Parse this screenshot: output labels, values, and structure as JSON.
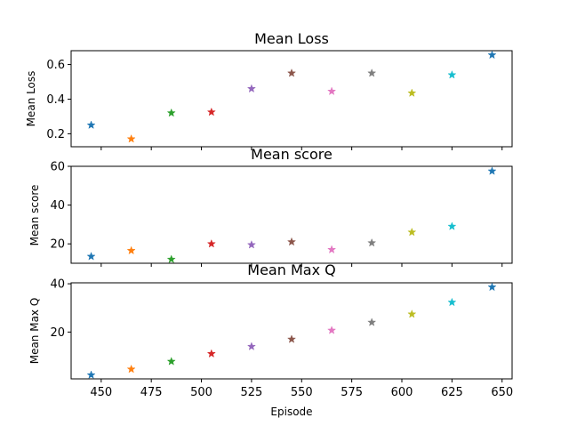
{
  "colors": [
    "#1f77b4",
    "#ff7f0e",
    "#2ca02c",
    "#d62728",
    "#9467bd",
    "#8c564b",
    "#e377c2",
    "#7f7f7f",
    "#bcbd22",
    "#17becf",
    "#1f77b4"
  ],
  "chart_data": [
    {
      "type": "scatter",
      "title": "Mean Loss",
      "ylabel": "Mean Loss",
      "xlabel": "",
      "x": [
        445,
        465,
        485,
        505,
        525,
        545,
        565,
        585,
        605,
        625,
        645
      ],
      "y": [
        0.25,
        0.17,
        0.32,
        0.325,
        0.46,
        0.55,
        0.445,
        0.55,
        0.435,
        0.54,
        0.655
      ],
      "xlim": [
        435,
        655
      ],
      "ylim": [
        0.125,
        0.68
      ],
      "yticks": [
        0.2,
        0.4,
        0.6
      ],
      "ytick_labels": [
        "0.2",
        "0.4",
        "0.6"
      ],
      "marker": "star"
    },
    {
      "type": "scatter",
      "title": "Mean score",
      "ylabel": "Mean score",
      "xlabel": "",
      "x": [
        445,
        465,
        485,
        505,
        525,
        545,
        565,
        585,
        605,
        625,
        645
      ],
      "y": [
        13.5,
        16.5,
        12,
        20,
        19.5,
        21,
        17,
        20.5,
        26,
        29,
        57.5
      ],
      "xlim": [
        435,
        655
      ],
      "ylim": [
        10,
        60
      ],
      "yticks": [
        20,
        40,
        60
      ],
      "ytick_labels": [
        "20",
        "40",
        "60"
      ],
      "marker": "star"
    },
    {
      "type": "scatter",
      "title": "Mean Max Q",
      "ylabel": "Mean Max Q",
      "xlabel": "Episode",
      "x": [
        445,
        465,
        485,
        505,
        525,
        545,
        565,
        585,
        605,
        625,
        645
      ],
      "y": [
        2.2,
        4.6,
        7.8,
        11,
        14,
        17,
        20.7,
        24,
        27.4,
        32.3,
        38.6
      ],
      "xlim": [
        435,
        655
      ],
      "ylim": [
        0.6,
        40.4
      ],
      "yticks": [
        20,
        40
      ],
      "ytick_labels": [
        "20",
        "40"
      ],
      "xticks": [
        450,
        475,
        500,
        525,
        550,
        575,
        600,
        625,
        650
      ],
      "xtick_labels": [
        "450",
        "475",
        "500",
        "525",
        "550",
        "575",
        "600",
        "625",
        "650"
      ],
      "marker": "star"
    }
  ]
}
